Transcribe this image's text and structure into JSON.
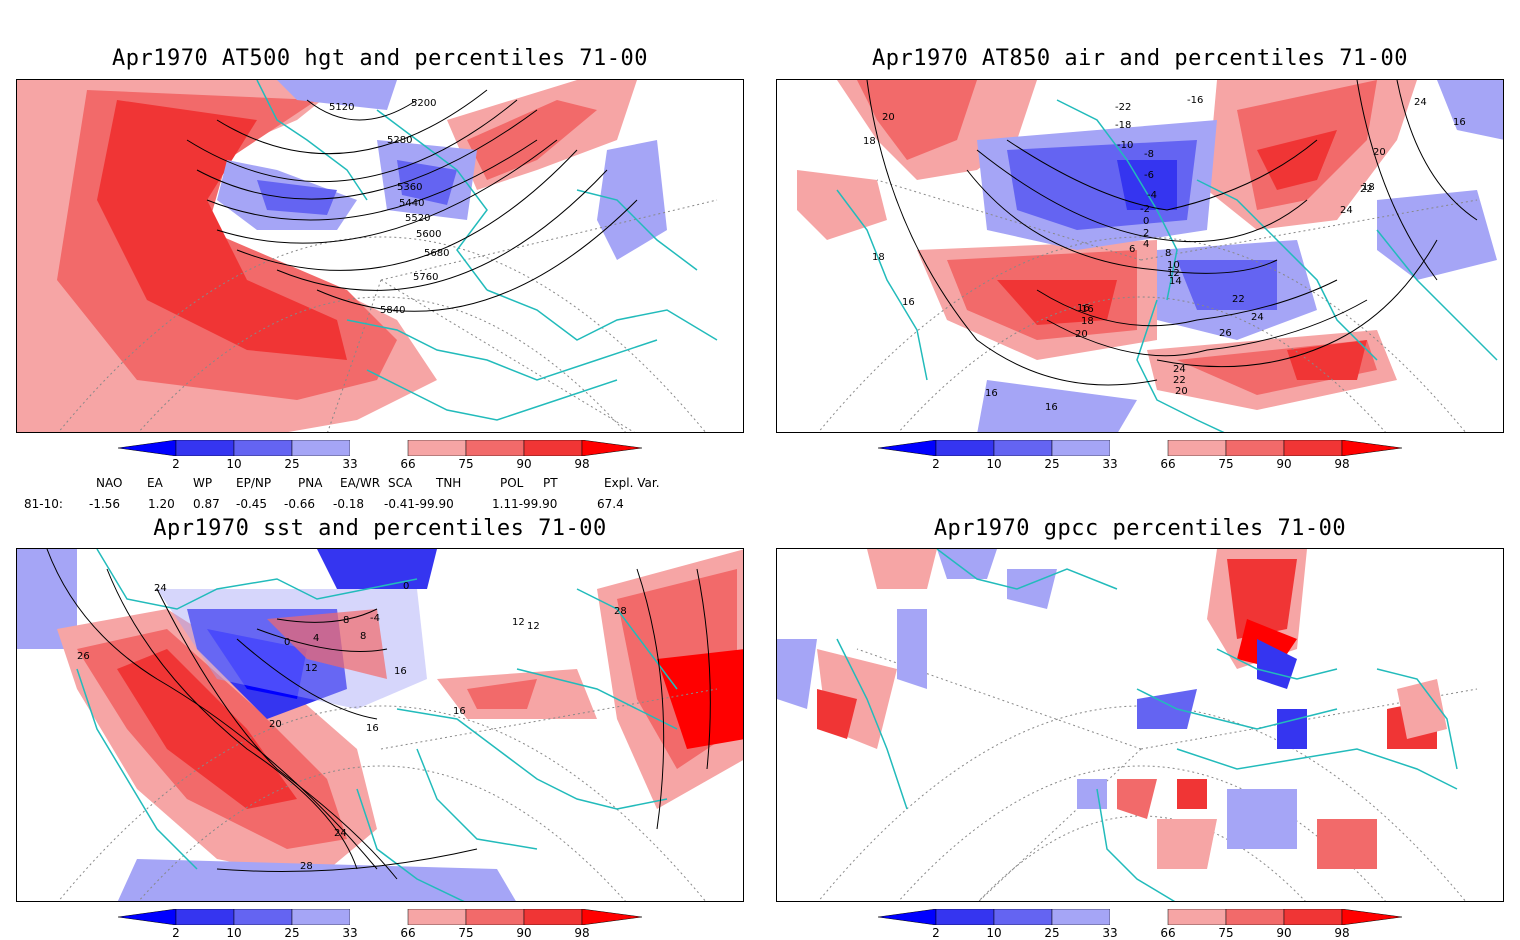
{
  "panels": {
    "p1": {
      "title": "Apr1970 AT500 hgt and percentiles 71-00",
      "contour_labels": [
        "5120",
        "5200",
        "5280",
        "5360",
        "5440",
        "5520",
        "5600",
        "5680",
        "5760",
        "5840"
      ]
    },
    "p2": {
      "title": "Apr1970 AT850 air and percentiles 71-00",
      "contour_labels": [
        "20",
        "18",
        "18",
        "16",
        "16",
        "16",
        "16",
        "16",
        "18",
        "20",
        "-22",
        "-18",
        "-16",
        "-10",
        "-8",
        "-6",
        "-4",
        "-2",
        "0",
        "2",
        "4",
        "6",
        "8",
        "10",
        "12",
        "14",
        "16",
        "18",
        "20",
        "22",
        "24",
        "26",
        "24",
        "22",
        "20",
        "24",
        "22",
        "20",
        "16",
        "18",
        "24"
      ]
    },
    "p3": {
      "title": "Apr1970 sst and percentiles 71-00",
      "contour_labels": [
        "24",
        "26",
        "0",
        "4",
        "8",
        "12",
        "16",
        "20",
        "24",
        "28",
        "28",
        "0",
        "-4",
        "8",
        "16",
        "12",
        "16",
        "12"
      ]
    },
    "p4": {
      "title": "Apr1970 gpcc percentiles 71-00"
    }
  },
  "colorbar": {
    "ticks": [
      "2",
      "10",
      "25",
      "33",
      "66",
      "75",
      "90",
      "98"
    ],
    "colors": {
      "dark_blue": "#0000ff",
      "blue": "#3535f0",
      "mid_blue": "#6464f2",
      "light_blue": "#a5a5f6",
      "light_red": "#f6a5a5",
      "mid_red": "#f26a6a",
      "red": "#f03535",
      "dark_red": "#ff0000"
    }
  },
  "indices": {
    "headers": [
      "NAO",
      "EA",
      "WP",
      "EP/NP",
      "PNA",
      "EA/WR",
      "SCA",
      "TNH",
      "POL",
      "PT",
      "Expl. Var."
    ],
    "row_label": "81-10:",
    "values": [
      "-1.56",
      "1.20",
      "0.87",
      "-0.45",
      "-0.66",
      "-0.18",
      "-0.41-99.90",
      "1.11-99.90",
      "67.4"
    ]
  },
  "colors": {
    "coastline": "#22bbbb",
    "contour": "#000000",
    "grid": "#888888"
  }
}
